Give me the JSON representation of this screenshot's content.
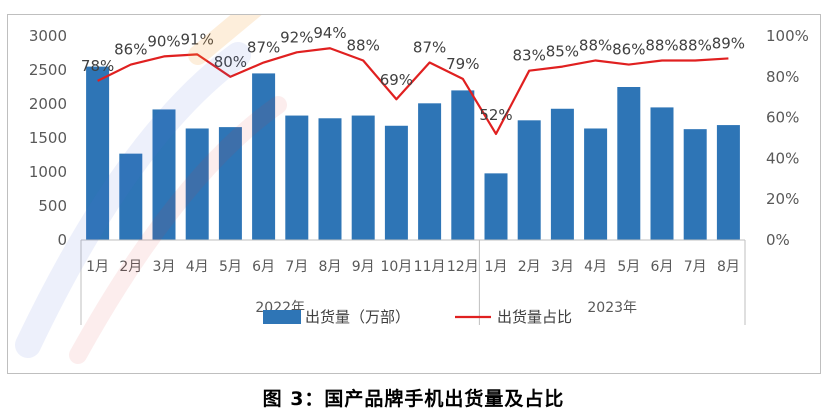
{
  "caption": "图 3：国产品牌手机出货量及占比",
  "chart_data": {
    "type": "bar",
    "categories": [
      "1月",
      "2月",
      "3月",
      "4月",
      "5月",
      "6月",
      "7月",
      "8月",
      "9月",
      "10月",
      "11月",
      "12月",
      "1月",
      "2月",
      "3月",
      "4月",
      "5月",
      "6月",
      "7月",
      "8月"
    ],
    "groups": [
      {
        "label": "2022年",
        "count": 12
      },
      {
        "label": "2023年",
        "count": 8
      }
    ],
    "series": [
      {
        "name": "出货量（万部）",
        "type": "bar",
        "axis": "left",
        "color": "#2e75b6",
        "values": [
          2550,
          1270,
          1920,
          1640,
          1660,
          2450,
          1830,
          1790,
          1830,
          1680,
          2010,
          2200,
          980,
          1760,
          1930,
          1640,
          2250,
          1950,
          1630,
          1690
        ]
      },
      {
        "name": "出货量占比",
        "type": "line",
        "axis": "right",
        "color": "#e02020",
        "values": [
          78,
          86,
          90,
          91,
          80,
          87,
          92,
          94,
          88,
          69,
          87,
          79,
          52,
          83,
          85,
          88,
          86,
          88,
          88,
          89
        ],
        "labels": [
          "78%",
          "86%",
          "90%",
          "91%",
          "80%",
          "87%",
          "92%",
          "94%",
          "88%",
          "69%",
          "87%",
          "79%",
          "52%",
          "83%",
          "85%",
          "88%",
          "86%",
          "88%",
          "88%",
          "89%"
        ]
      }
    ],
    "y_left": {
      "min": 0,
      "max": 3000,
      "ticks": [
        "0",
        "500",
        "1000",
        "1500",
        "2000",
        "2500",
        "3000"
      ]
    },
    "y_right": {
      "min": 0,
      "max": 100,
      "ticks": [
        "0%",
        "20%",
        "40%",
        "60%",
        "80%",
        "100%"
      ]
    },
    "grid": false,
    "legend_position": "bottom",
    "watermark_colors": [
      "#4a6fd6",
      "#e23b3b",
      "#f2a33a"
    ]
  }
}
